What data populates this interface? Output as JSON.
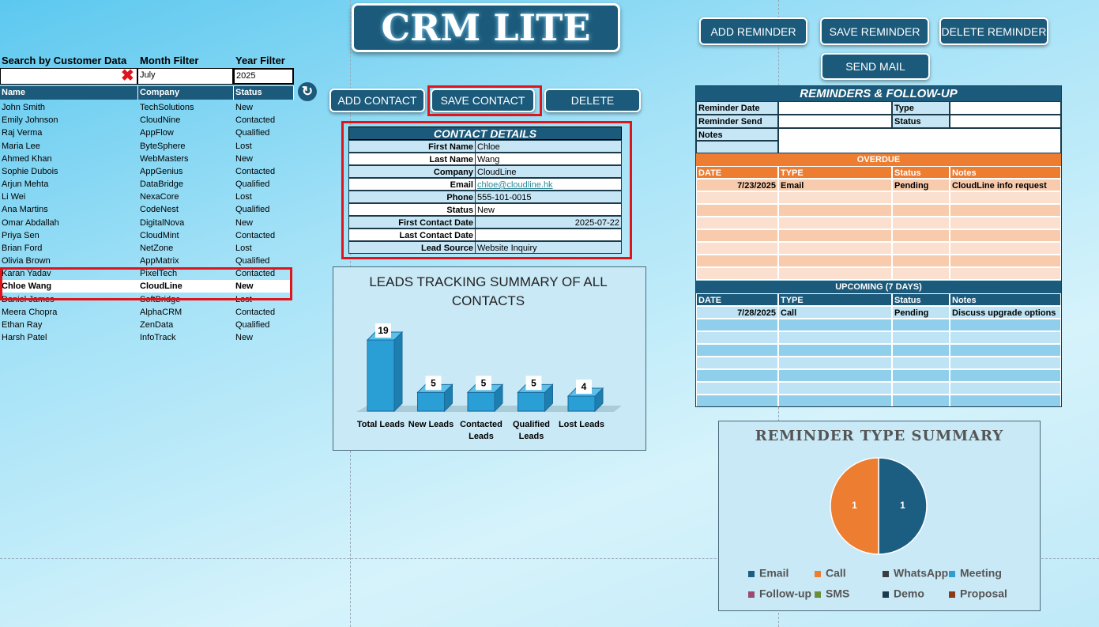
{
  "header": {
    "title": "CRM LITE"
  },
  "reminder_buttons": [
    "ADD REMINDER",
    "SAVE REMINDER",
    "DELETE REMINDER",
    "SEND MAIL"
  ],
  "contact_buttons": [
    "ADD CONTACT",
    "SAVE CONTACT",
    "DELETE"
  ],
  "filters": {
    "labels": [
      "Search by Customer Data",
      "Month Filter",
      "Year Filter"
    ],
    "month": "July",
    "year": "2025"
  },
  "contacts": {
    "columns": [
      "Name",
      "Company",
      "Status"
    ],
    "rows": [
      [
        "John Smith",
        "TechSolutions",
        "New"
      ],
      [
        "Emily Johnson",
        "CloudNine",
        "Contacted"
      ],
      [
        "Raj Verma",
        "AppFlow",
        "Qualified"
      ],
      [
        "Maria Lee",
        "ByteSphere",
        "Lost"
      ],
      [
        "Ahmed Khan",
        "WebMasters",
        "New"
      ],
      [
        "Sophie Dubois",
        "AppGenius",
        "Contacted"
      ],
      [
        "Arjun Mehta",
        "DataBridge",
        "Qualified"
      ],
      [
        "Li Wei",
        "NexaCore",
        "Lost"
      ],
      [
        "Ana Martins",
        "CodeNest",
        "Qualified"
      ],
      [
        "Omar Abdallah",
        "DigitalNova",
        "New"
      ],
      [
        "Priya Sen",
        "CloudMint",
        "Contacted"
      ],
      [
        "Brian Ford",
        "NetZone",
        "Lost"
      ],
      [
        "Olivia Brown",
        "AppMatrix",
        "Qualified"
      ],
      [
        "Karan Yadav",
        "PixelTech",
        "Contacted"
      ],
      [
        "Chloe Wang",
        "CloudLine",
        "New"
      ],
      [
        "Daniel James",
        "SoftBridge",
        "Lost"
      ],
      [
        "Meera Chopra",
        "AlphaCRM",
        "Contacted"
      ],
      [
        "Ethan Ray",
        "ZenData",
        "Qualified"
      ],
      [
        "Harsh Patel",
        "InfoTrack",
        "New"
      ]
    ]
  },
  "contact_details": {
    "title": "CONTACT DETAILS",
    "fields": [
      {
        "label": "First Name",
        "value": "Chloe"
      },
      {
        "label": "Last Name",
        "value": "Wang"
      },
      {
        "label": "Company",
        "value": "CloudLine"
      },
      {
        "label": "Email",
        "value": "chloe@cloudline.hk"
      },
      {
        "label": "Phone",
        "value": "555-101-0015"
      },
      {
        "label": "Status",
        "value": "New"
      },
      {
        "label": "First Contact Date",
        "value": "2025-07-22"
      },
      {
        "label": "Last Contact Date"
      },
      {
        "label": "Lead Source",
        "value": "Website Inquiry"
      }
    ]
  },
  "reminders": {
    "title": "REMINDERS & FOLLOW-UP",
    "form_labels": [
      "Reminder Date",
      "Type",
      "Reminder Send",
      "Status",
      "Notes"
    ],
    "overdue": {
      "title": "OVERDUE",
      "columns": [
        "DATE",
        "TYPE",
        "Status",
        "Notes"
      ],
      "rows": [
        [
          "7/23/2025",
          "Email",
          "Pending",
          "CloudLine info request"
        ]
      ]
    },
    "upcoming": {
      "title": "UPCOMING (7 DAYS)",
      "columns": [
        "DATE",
        "TYPE",
        "Status",
        "Notes"
      ],
      "rows": [
        [
          "7/28/2025",
          "Call",
          "Pending",
          "Discuss upgrade options"
        ]
      ]
    }
  },
  "chart_data": [
    {
      "type": "bar",
      "title": "LEADS TRACKING SUMMARY OF ALL CONTACTS",
      "categories": [
        "Total Leads",
        "New Leads",
        "Contacted Leads",
        "Qualified Leads",
        "Lost Leads"
      ],
      "values": [
        19,
        5,
        5,
        5,
        4
      ],
      "color": "#2a9fd6"
    },
    {
      "type": "pie",
      "title": "REMINDER TYPE SUMMARY",
      "categories": [
        "Email",
        "Call",
        "WhatsApp",
        "Meeting",
        "Follow-up",
        "SMS",
        "Demo",
        "Proposal"
      ],
      "values": [
        1,
        1,
        0,
        0,
        0,
        0,
        0,
        0
      ],
      "colors": [
        "#1b5e82",
        "#ed7d31",
        "#3d3d3d",
        "#2e9fd0",
        "#9c4a6e",
        "#6b8e3a",
        "#1c3a4a",
        "#8b3a1a"
      ]
    }
  ]
}
